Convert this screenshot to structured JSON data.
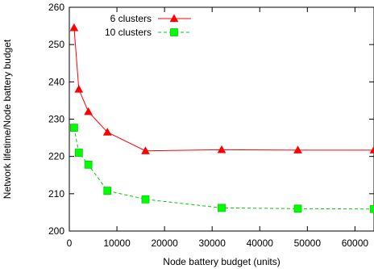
{
  "chart_data": {
    "type": "line",
    "xlabel": "Node battery budget (units)",
    "ylabel": "Network lifetime/Node battery budget",
    "xlim": [
      0,
      64000
    ],
    "ylim": [
      200,
      260
    ],
    "xticks": [
      0,
      10000,
      20000,
      30000,
      40000,
      50000,
      60000
    ],
    "xtick_labels": [
      "0",
      "10000",
      "20000",
      "30000",
      "40000",
      "50000",
      "60000"
    ],
    "yticks": [
      200,
      210,
      220,
      230,
      240,
      250,
      260
    ],
    "ytick_labels": [
      "200",
      "210",
      "220",
      "230",
      "240",
      "250",
      "260"
    ],
    "legend_position": "top-left",
    "grid": false,
    "series": [
      {
        "name": "6 clusters",
        "color": "#ff0000",
        "line_style": "solid",
        "marker": "triangle",
        "x": [
          1000,
          2000,
          4000,
          8000,
          16000,
          32000,
          48000,
          64000
        ],
        "y": [
          254.5,
          238.0,
          232.0,
          226.5,
          221.5,
          221.8,
          221.7,
          221.7
        ]
      },
      {
        "name": "10 clusters",
        "color": "#00cc00",
        "line_style": "dashed",
        "marker": "square",
        "marker_fill": "#00ff00",
        "x": [
          1000,
          2000,
          4000,
          8000,
          16000,
          32000,
          48000,
          64000
        ],
        "y": [
          227.7,
          221.0,
          217.8,
          210.8,
          208.5,
          206.2,
          206.0,
          205.9
        ]
      }
    ]
  }
}
